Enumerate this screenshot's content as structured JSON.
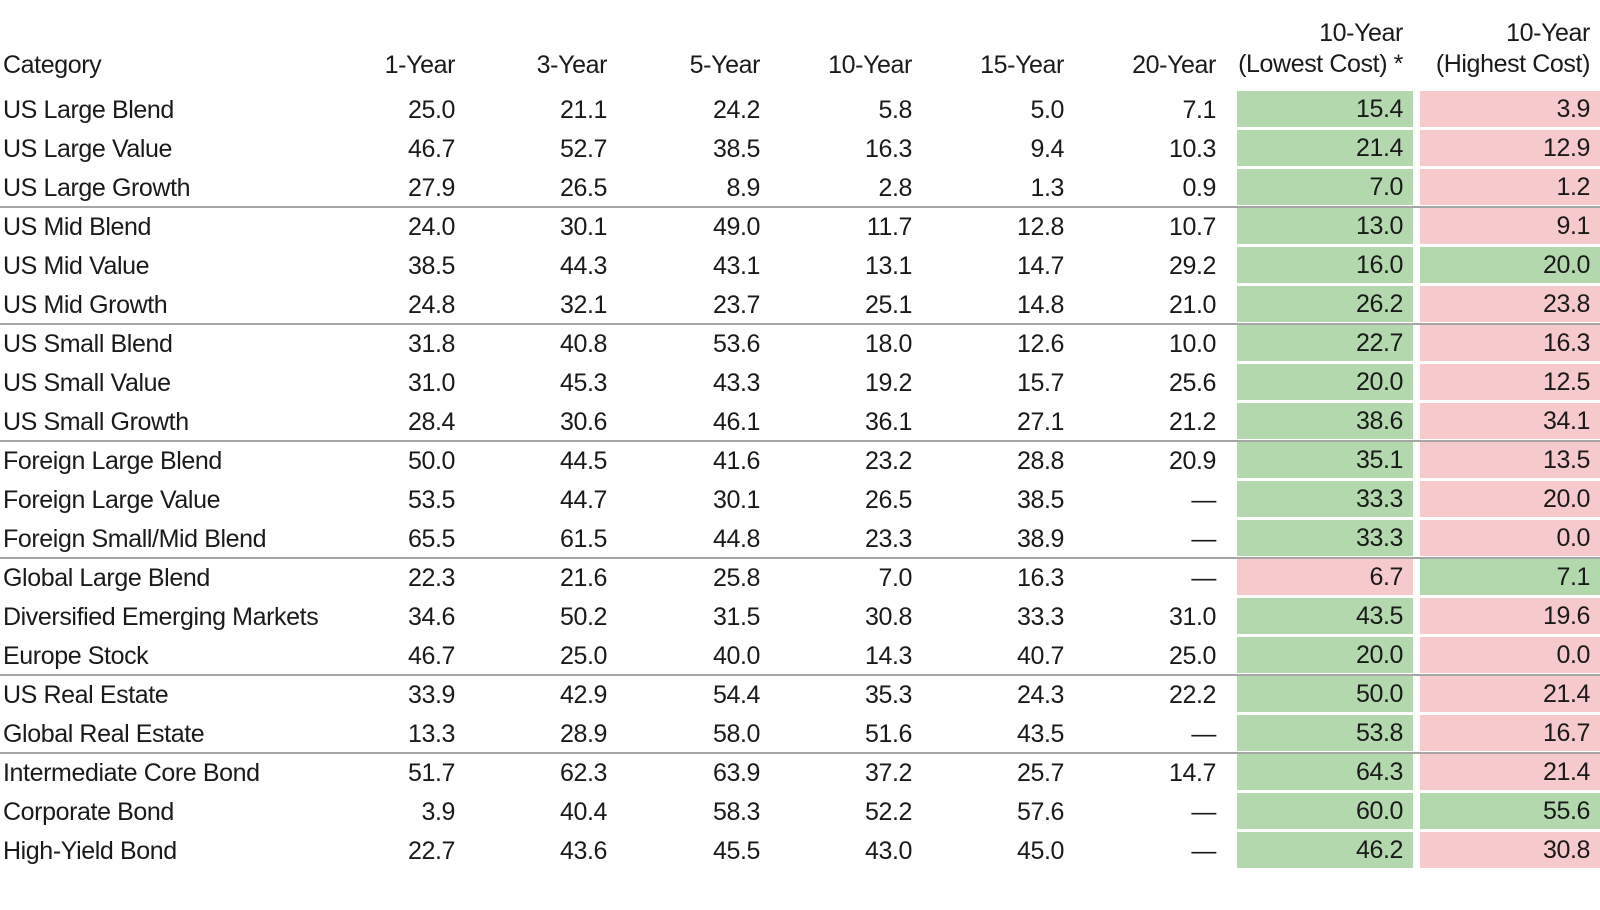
{
  "table": {
    "header": {
      "category_label": "Category",
      "period_labels": [
        "1-Year",
        "3-Year",
        "5-Year",
        "10-Year",
        "15-Year",
        "20-Year"
      ],
      "lowest_cost_line1": "10-Year",
      "lowest_cost_line2": "(Lowest Cost) *",
      "highest_cost_line1": "10-Year",
      "highest_cost_line2": "(Highest Cost)"
    },
    "missing_placeholder": "—",
    "colors": {
      "success_cell_bg": "#b3d8ae",
      "fail_cell_bg": "#f6c9cc",
      "group_divider": "#a6a6a6",
      "text": "#1a1a1a"
    },
    "rows": [
      {
        "category": "US Large Blend",
        "values": [
          "25.0",
          "21.1",
          "24.2",
          "5.8",
          "5.0",
          "7.1"
        ],
        "lowest": {
          "value": "15.4",
          "tone": "green"
        },
        "highest": {
          "value": "3.9",
          "tone": "red"
        },
        "divider_after": false
      },
      {
        "category": "US Large Value",
        "values": [
          "46.7",
          "52.7",
          "38.5",
          "16.3",
          "9.4",
          "10.3"
        ],
        "lowest": {
          "value": "21.4",
          "tone": "green"
        },
        "highest": {
          "value": "12.9",
          "tone": "red"
        },
        "divider_after": false
      },
      {
        "category": "US Large Growth",
        "values": [
          "27.9",
          "26.5",
          "8.9",
          "2.8",
          "1.3",
          "0.9"
        ],
        "lowest": {
          "value": "7.0",
          "tone": "green"
        },
        "highest": {
          "value": "1.2",
          "tone": "red"
        },
        "divider_after": true
      },
      {
        "category": "US Mid Blend",
        "values": [
          "24.0",
          "30.1",
          "49.0",
          "11.7",
          "12.8",
          "10.7"
        ],
        "lowest": {
          "value": "13.0",
          "tone": "green"
        },
        "highest": {
          "value": "9.1",
          "tone": "red"
        },
        "divider_after": false
      },
      {
        "category": "US Mid Value",
        "values": [
          "38.5",
          "44.3",
          "43.1",
          "13.1",
          "14.7",
          "29.2"
        ],
        "lowest": {
          "value": "16.0",
          "tone": "green"
        },
        "highest": {
          "value": "20.0",
          "tone": "green"
        },
        "divider_after": false
      },
      {
        "category": "US Mid Growth",
        "values": [
          "24.8",
          "32.1",
          "23.7",
          "25.1",
          "14.8",
          "21.0"
        ],
        "lowest": {
          "value": "26.2",
          "tone": "green"
        },
        "highest": {
          "value": "23.8",
          "tone": "red"
        },
        "divider_after": true
      },
      {
        "category": "US Small Blend",
        "values": [
          "31.8",
          "40.8",
          "53.6",
          "18.0",
          "12.6",
          "10.0"
        ],
        "lowest": {
          "value": "22.7",
          "tone": "green"
        },
        "highest": {
          "value": "16.3",
          "tone": "red"
        },
        "divider_after": false
      },
      {
        "category": "US Small Value",
        "values": [
          "31.0",
          "45.3",
          "43.3",
          "19.2",
          "15.7",
          "25.6"
        ],
        "lowest": {
          "value": "20.0",
          "tone": "green"
        },
        "highest": {
          "value": "12.5",
          "tone": "red"
        },
        "divider_after": false
      },
      {
        "category": "US Small Growth",
        "values": [
          "28.4",
          "30.6",
          "46.1",
          "36.1",
          "27.1",
          "21.2"
        ],
        "lowest": {
          "value": "38.6",
          "tone": "green"
        },
        "highest": {
          "value": "34.1",
          "tone": "red"
        },
        "divider_after": true
      },
      {
        "category": "Foreign Large Blend",
        "values": [
          "50.0",
          "44.5",
          "41.6",
          "23.2",
          "28.8",
          "20.9"
        ],
        "lowest": {
          "value": "35.1",
          "tone": "green"
        },
        "highest": {
          "value": "13.5",
          "tone": "red"
        },
        "divider_after": false
      },
      {
        "category": "Foreign Large Value",
        "values": [
          "53.5",
          "44.7",
          "30.1",
          "26.5",
          "38.5",
          "—"
        ],
        "lowest": {
          "value": "33.3",
          "tone": "green"
        },
        "highest": {
          "value": "20.0",
          "tone": "red"
        },
        "divider_after": false
      },
      {
        "category": "Foreign Small/Mid Blend",
        "values": [
          "65.5",
          "61.5",
          "44.8",
          "23.3",
          "38.9",
          "—"
        ],
        "lowest": {
          "value": "33.3",
          "tone": "green"
        },
        "highest": {
          "value": "0.0",
          "tone": "red"
        },
        "divider_after": true
      },
      {
        "category": "Global Large Blend",
        "values": [
          "22.3",
          "21.6",
          "25.8",
          "7.0",
          "16.3",
          "—"
        ],
        "lowest": {
          "value": "6.7",
          "tone": "red"
        },
        "highest": {
          "value": "7.1",
          "tone": "green"
        },
        "divider_after": false
      },
      {
        "category": "Diversified Emerging Markets",
        "values": [
          "34.6",
          "50.2",
          "31.5",
          "30.8",
          "33.3",
          "31.0"
        ],
        "lowest": {
          "value": "43.5",
          "tone": "green"
        },
        "highest": {
          "value": "19.6",
          "tone": "red"
        },
        "divider_after": false
      },
      {
        "category": "Europe Stock",
        "values": [
          "46.7",
          "25.0",
          "40.0",
          "14.3",
          "40.7",
          "25.0"
        ],
        "lowest": {
          "value": "20.0",
          "tone": "green"
        },
        "highest": {
          "value": "0.0",
          "tone": "red"
        },
        "divider_after": true
      },
      {
        "category": "US Real Estate",
        "values": [
          "33.9",
          "42.9",
          "54.4",
          "35.3",
          "24.3",
          "22.2"
        ],
        "lowest": {
          "value": "50.0",
          "tone": "green"
        },
        "highest": {
          "value": "21.4",
          "tone": "red"
        },
        "divider_after": false
      },
      {
        "category": "Global Real Estate",
        "values": [
          "13.3",
          "28.9",
          "58.0",
          "51.6",
          "43.5",
          "—"
        ],
        "lowest": {
          "value": "53.8",
          "tone": "green"
        },
        "highest": {
          "value": "16.7",
          "tone": "red"
        },
        "divider_after": true
      },
      {
        "category": "Intermediate Core Bond",
        "values": [
          "51.7",
          "62.3",
          "63.9",
          "37.2",
          "25.7",
          "14.7"
        ],
        "lowest": {
          "value": "64.3",
          "tone": "green"
        },
        "highest": {
          "value": "21.4",
          "tone": "red"
        },
        "divider_after": false
      },
      {
        "category": "Corporate Bond",
        "values": [
          "3.9",
          "40.4",
          "58.3",
          "52.2",
          "57.6",
          "—"
        ],
        "lowest": {
          "value": "60.0",
          "tone": "green"
        },
        "highest": {
          "value": "55.6",
          "tone": "green"
        },
        "divider_after": false
      },
      {
        "category": "High-Yield Bond",
        "values": [
          "22.7",
          "43.6",
          "45.5",
          "43.0",
          "45.0",
          "—"
        ],
        "lowest": {
          "value": "46.2",
          "tone": "green"
        },
        "highest": {
          "value": "30.8",
          "tone": "red"
        },
        "divider_after": false
      }
    ]
  },
  "chart_data": {
    "type": "table",
    "title": "",
    "columns": [
      "Category",
      "1-Year",
      "3-Year",
      "5-Year",
      "10-Year",
      "15-Year",
      "20-Year",
      "10-Year (Lowest Cost) *",
      "10-Year (Highest Cost)"
    ],
    "cell_highlighting": "10-Year (Lowest Cost) and 10-Year (Highest Cost) columns are shaded green (#b3d8ae) or red (#f6c9cc) per cell",
    "rows": [
      [
        "US Large Blend",
        25.0,
        21.1,
        24.2,
        5.8,
        5.0,
        7.1,
        15.4,
        3.9
      ],
      [
        "US Large Value",
        46.7,
        52.7,
        38.5,
        16.3,
        9.4,
        10.3,
        21.4,
        12.9
      ],
      [
        "US Large Growth",
        27.9,
        26.5,
        8.9,
        2.8,
        1.3,
        0.9,
        7.0,
        1.2
      ],
      [
        "US Mid Blend",
        24.0,
        30.1,
        49.0,
        11.7,
        12.8,
        10.7,
        13.0,
        9.1
      ],
      [
        "US Mid Value",
        38.5,
        44.3,
        43.1,
        13.1,
        14.7,
        29.2,
        16.0,
        20.0
      ],
      [
        "US Mid Growth",
        24.8,
        32.1,
        23.7,
        25.1,
        14.8,
        21.0,
        26.2,
        23.8
      ],
      [
        "US Small Blend",
        31.8,
        40.8,
        53.6,
        18.0,
        12.6,
        10.0,
        22.7,
        16.3
      ],
      [
        "US Small Value",
        31.0,
        45.3,
        43.3,
        19.2,
        15.7,
        25.6,
        20.0,
        12.5
      ],
      [
        "US Small Growth",
        28.4,
        30.6,
        46.1,
        36.1,
        27.1,
        21.2,
        38.6,
        34.1
      ],
      [
        "Foreign Large Blend",
        50.0,
        44.5,
        41.6,
        23.2,
        28.8,
        20.9,
        35.1,
        13.5
      ],
      [
        "Foreign Large Value",
        53.5,
        44.7,
        30.1,
        26.5,
        38.5,
        null,
        33.3,
        20.0
      ],
      [
        "Foreign Small/Mid Blend",
        65.5,
        61.5,
        44.8,
        23.3,
        38.9,
        null,
        33.3,
        0.0
      ],
      [
        "Global Large Blend",
        22.3,
        21.6,
        25.8,
        7.0,
        16.3,
        null,
        6.7,
        7.1
      ],
      [
        "Diversified Emerging Markets",
        34.6,
        50.2,
        31.5,
        30.8,
        33.3,
        31.0,
        43.5,
        19.6
      ],
      [
        "Europe Stock",
        46.7,
        25.0,
        40.0,
        14.3,
        40.7,
        25.0,
        20.0,
        0.0
      ],
      [
        "US Real Estate",
        33.9,
        42.9,
        54.4,
        35.3,
        24.3,
        22.2,
        50.0,
        21.4
      ],
      [
        "Global Real Estate",
        13.3,
        28.9,
        58.0,
        51.6,
        43.5,
        null,
        53.8,
        16.7
      ],
      [
        "Intermediate Core Bond",
        51.7,
        62.3,
        63.9,
        37.2,
        25.7,
        14.7,
        64.3,
        21.4
      ],
      [
        "Corporate Bond",
        3.9,
        40.4,
        58.3,
        52.2,
        57.6,
        null,
        60.0,
        55.6
      ],
      [
        "High-Yield Bond",
        22.7,
        43.6,
        45.5,
        43.0,
        45.0,
        null,
        46.2,
        30.8
      ]
    ]
  }
}
